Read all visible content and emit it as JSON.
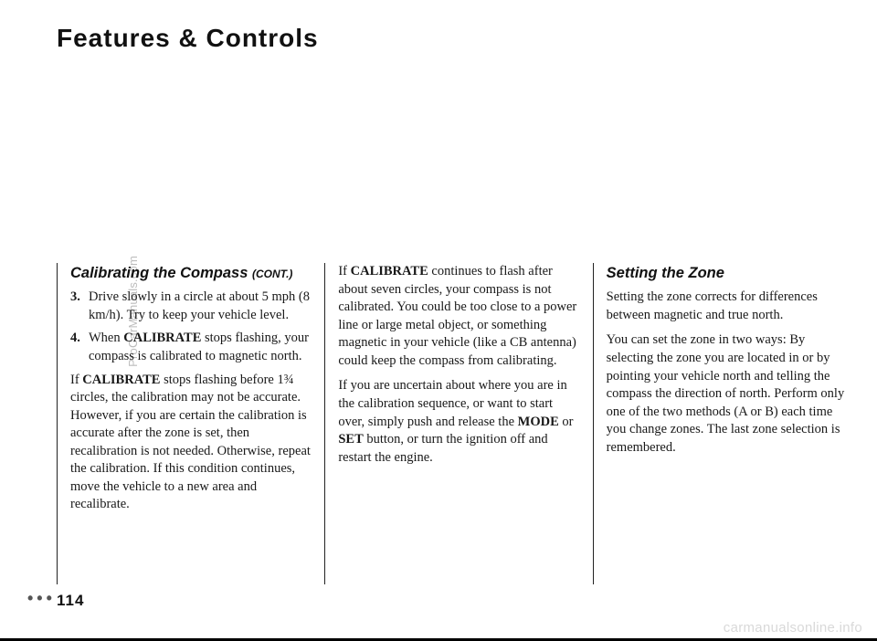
{
  "header": {
    "title": "Features & Controls"
  },
  "sideLabel": "ProCarManuals.com",
  "col1": {
    "heading": "Calibrating the Compass",
    "headingCont": "(CONT.)",
    "item3_num": "3.",
    "item3_text": "Drive slowly in a circle at about 5 mph (8 km/h). Try to keep your vehicle level.",
    "item4_num": "4.",
    "item4_pre": "When ",
    "item4_bold": "CALIBRATE",
    "item4_post": " stops flashing, your compass is calibrated to magnetic north.",
    "p1_pre": "If ",
    "p1_bold": "CALIBRATE",
    "p1_post": " stops flashing before 1¾ circles, the calibration may not be accurate. However, if you are certain the calibration is accurate after the zone is set, then recalibration is not needed. Otherwise, repeat the calibration. If this condition continues, move the vehicle to a new area and recalibrate."
  },
  "col2": {
    "p1_pre": "If ",
    "p1_bold": "CALIBRATE",
    "p1_post": " continues to flash after about seven circles, your compass is not calibrated. You could be too close to a power line or large metal object, or something magnetic in your vehicle (like a CB antenna) could keep the compass from calibrating.",
    "p2_pre": "If you are uncertain about where you are in the calibration sequence, or want to start over, simply push and release the ",
    "p2_b1": "MODE",
    "p2_mid": " or ",
    "p2_b2": "SET",
    "p2_post": " button, or turn the ignition off and restart the engine."
  },
  "col3": {
    "heading": "Setting the Zone",
    "p1": "Setting the zone corrects for differences between magnetic and true north.",
    "p2": "You can set the zone in two ways: By selecting the zone you are located in or by pointing your vehicle north and telling the compass the direction of north. Perform only one of the two methods (A or B) each time you change zones. The last zone selection is remembered."
  },
  "pageNumber": "114",
  "watermark": "carmanualsonline.info"
}
